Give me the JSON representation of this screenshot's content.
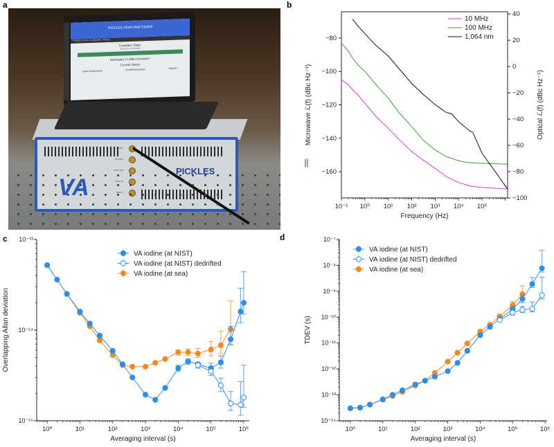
{
  "panels": {
    "a": "a",
    "b": "b",
    "c": "c",
    "d": "d"
  },
  "photo": {
    "screen_title": "PICKLES Clock Web Control",
    "screen_nav": [
      "PICKLES",
      "Home",
      "Configuration",
      "Plotting"
    ],
    "controller_state": "Controller State:",
    "controller_state_value": "Ready for Commands",
    "allan_title": "Estimated 1s Allan Deviation:",
    "current_status": "Current Status",
    "iodine_temp": "IodineTemperature",
    "comb_temp": "CombTemperature",
    "walnut": "Walnut 1",
    "device_name": "PICKLES",
    "logo": "VA",
    "connectors": [
      "10 MHz",
      "100 MHz",
      "1PPS OUT",
      "SYNC IN",
      "PPS IN"
    ]
  },
  "chart_data": [
    {
      "id": "b",
      "type": "line",
      "xscale": "log",
      "xlabel": "Frequency (Hz)",
      "ylabel_left": "Microwave ℒ(f) (dBc Hz⁻¹)",
      "ylabel_right": "Optical ℒ(f) (dBc Hz⁻¹)",
      "xlim_log10": [
        -1,
        6.09
      ],
      "ylim_left": [
        -175.7,
        -64.3
      ],
      "ylim_right": [
        -100,
        41.7
      ],
      "xticks": [
        {
          "v": -1,
          "label": "10⁻¹"
        },
        {
          "v": 0,
          "label": "10⁰"
        },
        {
          "v": 1,
          "label": "10¹"
        },
        {
          "v": 2,
          "label": "10²"
        },
        {
          "v": 3,
          "label": "10³"
        },
        {
          "v": 4,
          "label": "10⁴"
        },
        {
          "v": 5,
          "label": "10⁵"
        }
      ],
      "yticks_left": [
        {
          "v": -80,
          "label": "−80"
        },
        {
          "v": -100,
          "label": "−100"
        },
        {
          "v": -120,
          "label": "−120"
        },
        {
          "v": -140,
          "label": "−140"
        },
        {
          "v": -160,
          "label": "−160"
        }
      ],
      "yticks_right": [
        {
          "v": 40,
          "label": "40"
        },
        {
          "v": 20,
          "label": "20"
        },
        {
          "v": 0,
          "label": "0"
        },
        {
          "v": -20,
          "label": "−20"
        },
        {
          "v": -40,
          "label": "−40"
        },
        {
          "v": -60,
          "label": "−60"
        },
        {
          "v": -80,
          "label": "−80"
        },
        {
          "v": -100,
          "label": "−100"
        }
      ],
      "legend_position": "top-right",
      "series": [
        {
          "name": "10 MHz",
          "axis": "left",
          "color": "#d23fd2",
          "points": [
            [
              0.1,
              -105
            ],
            [
              0.2,
              -108
            ],
            [
              0.3,
              -111
            ],
            [
              0.5,
              -114
            ],
            [
              1,
              -119
            ],
            [
              3,
              -127
            ],
            [
              10,
              -134
            ],
            [
              30,
              -141
            ],
            [
              100,
              -148
            ],
            [
              300,
              -153
            ],
            [
              1000,
              -158
            ],
            [
              3000,
              -163
            ],
            [
              10000,
              -166.5
            ],
            [
              30000,
              -168.5
            ],
            [
              100000,
              -169.5
            ],
            [
              1200000,
              -170.3
            ]
          ]
        },
        {
          "name": "100 MHz",
          "axis": "left",
          "color": "#3f9a3f",
          "points": [
            [
              0.1,
              -83
            ],
            [
              0.2,
              -88
            ],
            [
              0.3,
              -92
            ],
            [
              0.5,
              -96
            ],
            [
              1,
              -100
            ],
            [
              3,
              -108
            ],
            [
              10,
              -116
            ],
            [
              30,
              -125
            ],
            [
              100,
              -133
            ],
            [
              300,
              -141
            ],
            [
              1000,
              -147
            ],
            [
              3000,
              -151
            ],
            [
              10000,
              -153.5
            ],
            [
              30000,
              -154.7
            ],
            [
              100000,
              -155
            ],
            [
              1200000,
              -155.5
            ]
          ]
        },
        {
          "name": "1,064 nm",
          "axis": "right",
          "color": "#111111",
          "points": [
            [
              0.3,
              36
            ],
            [
              0.5,
              31
            ],
            [
              1,
              25
            ],
            [
              3,
              16
            ],
            [
              10,
              8
            ],
            [
              30,
              -2
            ],
            [
              100,
              -13
            ],
            [
              300,
              -21
            ],
            [
              1000,
              -29
            ],
            [
              3000,
              -35
            ],
            [
              5000,
              -36
            ],
            [
              10000,
              -42
            ],
            [
              30000,
              -49
            ],
            [
              40000,
              -50
            ],
            [
              100000,
              -66
            ],
            [
              300000,
              -78
            ],
            [
              1200000,
              -93
            ]
          ]
        }
      ]
    },
    {
      "id": "c",
      "type": "scatter",
      "xscale": "log",
      "yscale": "log",
      "xlabel": "Averaging interval (s)",
      "ylabel": "Overlapping Allan deviation",
      "xlim_log10": [
        -0.32,
        6.17
      ],
      "ylim_log10": [
        -15,
        -13
      ],
      "xticks": [
        {
          "v": 0,
          "label": "10⁰"
        },
        {
          "v": 1,
          "label": "10¹"
        },
        {
          "v": 2,
          "label": "10²"
        },
        {
          "v": 3,
          "label": "10³"
        },
        {
          "v": 4,
          "label": "10⁴"
        },
        {
          "v": 5,
          "label": "10⁵"
        },
        {
          "v": 6,
          "label": "10⁶"
        }
      ],
      "yticks": [
        {
          "v": -13,
          "label": "10⁻¹³"
        },
        {
          "v": -14,
          "label": "10⁻¹⁴"
        },
        {
          "v": -15,
          "label": "10⁻¹⁵"
        }
      ],
      "legend_position": "top-right",
      "series": [
        {
          "name": "VA iodine (at NIST)",
          "color": "#2f8fe6",
          "filled": true,
          "points": [
            [
              1,
              5.2e-14
            ],
            [
              2,
              3.6e-14
            ],
            [
              4,
              2.5e-14
            ],
            [
              10,
              1.6e-14
            ],
            [
              20,
              1.18e-14
            ],
            [
              40,
              8.7e-15
            ],
            [
              100,
              5.9e-15
            ],
            [
              200,
              4.2e-15
            ],
            [
              400,
              3e-15
            ],
            [
              1000,
              1.94e-15
            ],
            [
              2000,
              1.7e-15
            ],
            [
              4000,
              2.3e-15
            ],
            [
              10000,
              3.8e-15
            ],
            [
              20000,
              4.5e-15
            ],
            [
              40000,
              4.2e-15
            ],
            [
              100000,
              3.8e-15
            ],
            [
              200000,
              4.4e-15
            ],
            [
              400000,
              7.9e-15
            ],
            [
              800000,
              1.6e-14
            ],
            [
              1000000,
              2e-14
            ]
          ],
          "errors": {
            "10000": [
              3.5e-15,
              4.1e-15
            ],
            "20000": [
              4.2e-15,
              4.8e-15
            ],
            "100000": [
              3.4e-15,
              4.3e-15
            ],
            "200000": [
              3.8e-15,
              5.2e-15
            ],
            "400000": [
              6.8e-15,
              1.1e-14
            ],
            "800000": [
              1.2e-14,
              2.9e-14
            ],
            "1000000": [
              1.5e-14,
              4.4e-14
            ]
          }
        },
        {
          "name": "VA iodine (at NIST) dedrifted",
          "color": "#2f8fe6",
          "filled": false,
          "points": [
            [
              40000,
              4.1e-15
            ],
            [
              100000,
              3.5e-15
            ],
            [
              200000,
              2.45e-15
            ],
            [
              400000,
              1.55e-15
            ],
            [
              800000,
              1.5e-15
            ],
            [
              1000000,
              1.8e-15
            ]
          ],
          "errors": {
            "40000": [
              3.8e-15,
              4.4e-15
            ],
            "100000": [
              3.15e-15,
              3.9e-15
            ],
            "200000": [
              2.1e-15,
              2.95e-15
            ],
            "400000": [
              1.3e-15,
              2.1e-15
            ],
            "800000": [
              1.15e-15,
              2.7e-15
            ],
            "1000000": [
              1.4e-15,
              4.1e-15
            ]
          }
        },
        {
          "name": "VA iodine (at sea)",
          "color": "#f08a24",
          "filled": true,
          "points": [
            [
              1,
              5.2e-14
            ],
            [
              2,
              3.6e-14
            ],
            [
              4,
              2.5e-14
            ],
            [
              10,
              1.55e-14
            ],
            [
              20,
              1.1e-14
            ],
            [
              40,
              7.7e-15
            ],
            [
              100,
              5.3e-15
            ],
            [
              200,
              4.1e-15
            ],
            [
              400,
              3.95e-15
            ],
            [
              1000,
              3.95e-15
            ],
            [
              2000,
              4.35e-15
            ],
            [
              4000,
              4.8e-15
            ],
            [
              10000,
              5.7e-15
            ],
            [
              20000,
              5.7e-15
            ],
            [
              40000,
              5.5e-15
            ],
            [
              100000,
              6.1e-15
            ],
            [
              200000,
              6.8e-15
            ],
            [
              400000,
              1.02e-14
            ]
          ],
          "errors": {
            "10000": [
              5.3e-15,
              6e-15
            ],
            "20000": [
              5.2e-15,
              6.2e-15
            ],
            "40000": [
              5e-15,
              6.3e-15
            ],
            "100000": [
              5.2e-15,
              7.5e-15
            ],
            "200000": [
              5.5e-15,
              9.7e-15
            ],
            "400000": [
              7e-15,
              2.1e-14
            ]
          }
        }
      ]
    },
    {
      "id": "d",
      "type": "scatter",
      "xscale": "log",
      "yscale": "log",
      "xlabel": "Averaging interval (s)",
      "ylabel": "TDEV (s)",
      "xlim_log10": [
        -0.34,
        6.06
      ],
      "ylim_log10": [
        -14,
        -7
      ],
      "xticks": [
        {
          "v": 0,
          "label": "10⁰"
        },
        {
          "v": 1,
          "label": "10¹"
        },
        {
          "v": 2,
          "label": "10²"
        },
        {
          "v": 3,
          "label": "10³"
        },
        {
          "v": 4,
          "label": "10⁴"
        },
        {
          "v": 5,
          "label": "10⁵"
        },
        {
          "v": 6,
          "label": "10⁶"
        }
      ],
      "yticks": [
        {
          "v": -7,
          "label": "10⁻⁷"
        },
        {
          "v": -8,
          "label": "10⁻⁸"
        },
        {
          "v": -9,
          "label": "10⁻⁹"
        },
        {
          "v": -10,
          "label": "10⁻¹⁰"
        },
        {
          "v": -11,
          "label": "10⁻¹¹"
        },
        {
          "v": -12,
          "label": "10⁻¹²"
        },
        {
          "v": -13,
          "label": "10⁻¹³"
        },
        {
          "v": -14,
          "label": "10⁻¹⁴"
        }
      ],
      "legend_position": "top-left",
      "series": [
        {
          "name": "VA iodine (at NIST)",
          "color": "#2f8fe6",
          "filled": true,
          "points": [
            [
              1,
              3e-14
            ],
            [
              2,
              3.2e-14
            ],
            [
              4,
              4.2e-14
            ],
            [
              10,
              6.7e-14
            ],
            [
              20,
              1e-13
            ],
            [
              40,
              1.5e-13
            ],
            [
              100,
              2.5e-13
            ],
            [
              200,
              3.5e-13
            ],
            [
              400,
              5e-13
            ],
            [
              1000,
              8.2e-13
            ],
            [
              2000,
              1.7e-12
            ],
            [
              4000,
              5e-12
            ],
            [
              10000,
              2e-11
            ],
            [
              20000,
              4.2e-11
            ],
            [
              40000,
              8.5e-11
            ],
            [
              100000,
              2e-10
            ],
            [
              200000,
              5e-10
            ],
            [
              400000,
              1.9e-09
            ],
            [
              800000,
              7.7e-09
            ]
          ],
          "errors": {
            "100000": [
              1.5e-10,
              2.6e-10
            ],
            "200000": [
              3.6e-10,
              7e-10
            ],
            "400000": [
              1.4e-09,
              3.4e-09
            ],
            "800000": [
              5.5e-09,
              3.8e-08
            ]
          }
        },
        {
          "name": "VA iodine (at NIST) dedrifted",
          "color": "#2f8fe6",
          "filled": false,
          "points": [
            [
              40000,
              7.7e-11
            ],
            [
              100000,
              1.5e-10
            ],
            [
              200000,
              1.9e-10
            ],
            [
              400000,
              2.1e-10
            ],
            [
              800000,
              7e-10
            ]
          ],
          "errors": {
            "100000": [
              1.2e-10,
              1.8e-10
            ],
            "200000": [
              1.5e-10,
              2.6e-10
            ],
            "400000": [
              1.6e-10,
              3.8e-10
            ],
            "800000": [
              5e-10,
              3.5e-09
            ]
          }
        },
        {
          "name": "VA iodine (at sea)",
          "color": "#f08a24",
          "filled": true,
          "points": [
            [
              1,
              3e-14
            ],
            [
              2,
              3.2e-14
            ],
            [
              4,
              4.2e-14
            ],
            [
              10,
              6.5e-14
            ],
            [
              20,
              9e-14
            ],
            [
              40,
              1.3e-13
            ],
            [
              100,
              2.3e-13
            ],
            [
              200,
              3.5e-13
            ],
            [
              400,
              7e-13
            ],
            [
              1000,
              1.9e-12
            ],
            [
              2000,
              4.2e-12
            ],
            [
              4000,
              9.6e-12
            ],
            [
              10000,
              2.8e-11
            ],
            [
              20000,
              5.1e-11
            ],
            [
              40000,
              1.06e-10
            ],
            [
              100000,
              2.9e-10
            ],
            [
              200000,
              7.7e-10
            ]
          ],
          "errors": {
            "40000": [
              9e-11,
              1.3e-10
            ],
            "100000": [
              2.3e-10,
              4e-10
            ],
            "200000": [
              5e-10,
              1.6e-09
            ]
          }
        }
      ]
    }
  ]
}
